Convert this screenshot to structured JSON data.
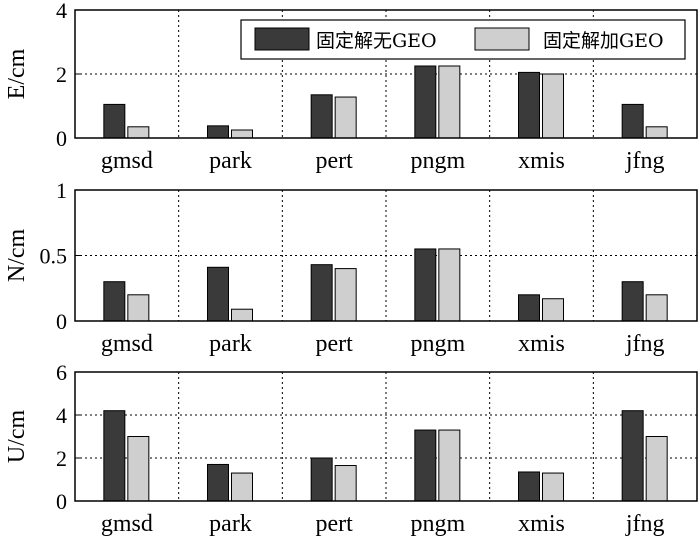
{
  "chart_data": [
    {
      "type": "bar",
      "ylabel": "E/cm",
      "ylim": [
        0,
        4
      ],
      "yticks": [
        0,
        2,
        4
      ],
      "categories": [
        "gmsd",
        "park",
        "pert",
        "pngm",
        "xmis",
        "jfng"
      ],
      "series": [
        {
          "name": "固定解无GEO",
          "color": "#3a3a3a",
          "values": [
            1.05,
            0.38,
            1.35,
            2.25,
            2.05,
            1.05
          ]
        },
        {
          "name": "固定解加GEO",
          "color": "#cfcfcf",
          "values": [
            0.35,
            0.25,
            1.28,
            2.25,
            2.0,
            0.35
          ]
        }
      ],
      "grid": true,
      "legend": "top-right"
    },
    {
      "type": "bar",
      "ylabel": "N/cm",
      "ylim": [
        0,
        1
      ],
      "yticks": [
        0,
        0.5,
        1
      ],
      "categories": [
        "gmsd",
        "park",
        "pert",
        "pngm",
        "xmis",
        "jfng"
      ],
      "series": [
        {
          "name": "固定解无GEO",
          "color": "#3a3a3a",
          "values": [
            0.3,
            0.41,
            0.43,
            0.55,
            0.2,
            0.3
          ]
        },
        {
          "name": "固定解加GEO",
          "color": "#cfcfcf",
          "values": [
            0.2,
            0.09,
            0.4,
            0.55,
            0.17,
            0.2
          ]
        }
      ],
      "grid": true
    },
    {
      "type": "bar",
      "ylabel": "U/cm",
      "ylim": [
        0,
        6
      ],
      "yticks": [
        0,
        2,
        4,
        6
      ],
      "categories": [
        "gmsd",
        "park",
        "pert",
        "pngm",
        "xmis",
        "jfng"
      ],
      "series": [
        {
          "name": "固定解无GEO",
          "color": "#3a3a3a",
          "values": [
            4.2,
            1.7,
            2.0,
            3.3,
            1.35,
            4.2
          ]
        },
        {
          "name": "固定解加GEO",
          "color": "#cfcfcf",
          "values": [
            3.0,
            1.3,
            1.65,
            3.3,
            1.3,
            3.0
          ]
        }
      ],
      "grid": true
    }
  ]
}
